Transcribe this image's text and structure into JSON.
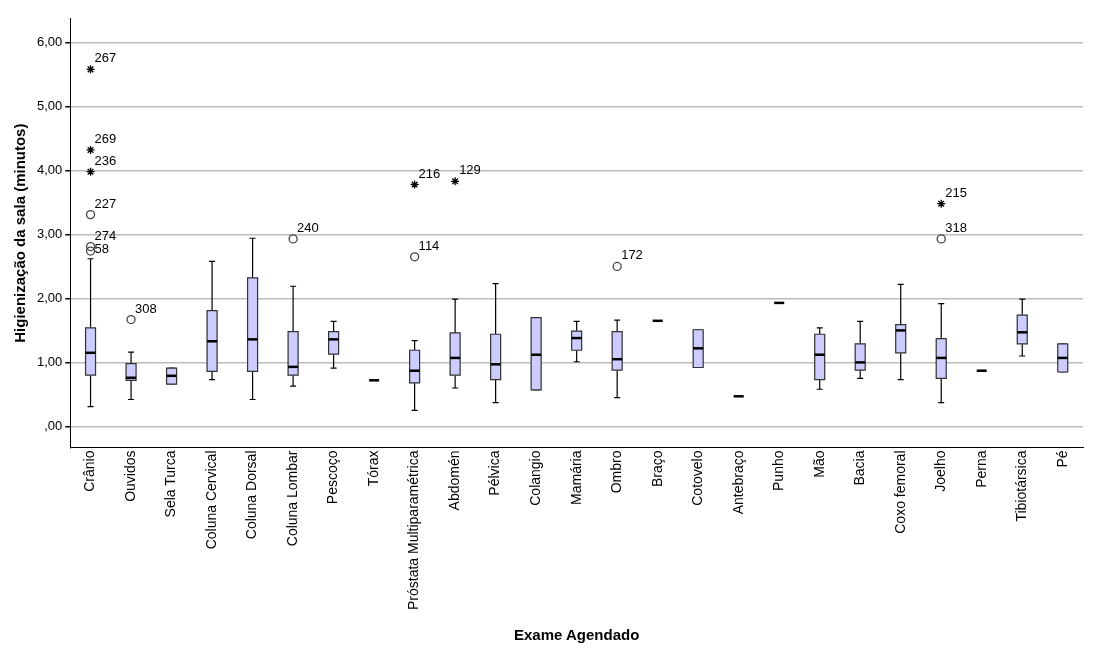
{
  "chart_data": {
    "type": "box",
    "xlabel": "Exame Agendado",
    "ylabel": "Higienização da sala (minutos)",
    "categories": [
      "Crânio",
      "Ouvidos",
      "Sela Turca",
      "Coluna Cervical",
      "Coluna Dorsal",
      "Coluna Lombar",
      "Pescoço",
      "Tórax",
      "Próstata Multiparamétrica",
      "Abdomén",
      "Pélvica",
      "Colangio",
      "Mamária",
      "Ombro",
      "Braço",
      "Cotovelo",
      "Antebraço",
      "Punho",
      "Mão",
      "Bacia",
      "Coxo femoral",
      "Joelho",
      "Perna",
      "Tibiotársica",
      "Pé"
    ],
    "series": [
      {
        "color": "#ccccff",
        "boxes": [
          {
            "low": 0.31,
            "q1": 0.8,
            "median": 1.15,
            "q3": 1.54,
            "high": 2.62
          },
          {
            "low": 0.42,
            "q1": 0.72,
            "median": 0.76,
            "q3": 0.98,
            "high": 1.16
          },
          {
            "low": 0.66,
            "q1": 0.66,
            "median": 0.79,
            "q3": 0.91,
            "high": 0.91
          },
          {
            "low": 0.73,
            "q1": 0.86,
            "median": 1.33,
            "q3": 1.81,
            "high": 2.58
          },
          {
            "low": 0.42,
            "q1": 0.86,
            "median": 1.36,
            "q3": 2.32,
            "high": 2.94
          },
          {
            "low": 0.63,
            "q1": 0.8,
            "median": 0.93,
            "q3": 1.48,
            "high": 2.19
          },
          {
            "low": 0.91,
            "q1": 1.13,
            "median": 1.36,
            "q3": 1.48,
            "high": 1.64
          },
          {
            "low": 0.72,
            "q1": 0.72,
            "median": 0.72,
            "q3": 0.72,
            "high": 0.72
          },
          {
            "low": 0.25,
            "q1": 0.68,
            "median": 0.87,
            "q3": 1.19,
            "high": 1.34
          },
          {
            "low": 0.6,
            "q1": 0.8,
            "median": 1.07,
            "q3": 1.46,
            "high": 1.99
          },
          {
            "low": 0.37,
            "q1": 0.73,
            "median": 0.97,
            "q3": 1.44,
            "high": 2.23
          },
          {
            "low": 0.57,
            "q1": 0.57,
            "median": 1.12,
            "q3": 1.7,
            "high": 1.7
          },
          {
            "low": 1.01,
            "q1": 1.19,
            "median": 1.38,
            "q3": 1.49,
            "high": 1.64
          },
          {
            "low": 0.45,
            "q1": 0.88,
            "median": 1.05,
            "q3": 1.48,
            "high": 1.66
          },
          {
            "low": 1.65,
            "q1": 1.65,
            "median": 1.65,
            "q3": 1.65,
            "high": 1.65
          },
          {
            "low": 0.92,
            "q1": 0.92,
            "median": 1.22,
            "q3": 1.51,
            "high": 1.51
          },
          {
            "low": 0.47,
            "q1": 0.47,
            "median": 0.47,
            "q3": 0.47,
            "high": 0.47
          },
          {
            "low": 1.93,
            "q1": 1.93,
            "median": 1.93,
            "q3": 1.93,
            "high": 1.93
          },
          {
            "low": 0.58,
            "q1": 0.73,
            "median": 1.12,
            "q3": 1.44,
            "high": 1.54
          },
          {
            "low": 0.75,
            "q1": 0.88,
            "median": 1.0,
            "q3": 1.29,
            "high": 1.64
          },
          {
            "low": 0.73,
            "q1": 1.15,
            "median": 1.5,
            "q3": 1.59,
            "high": 2.22
          },
          {
            "low": 0.37,
            "q1": 0.75,
            "median": 1.07,
            "q3": 1.37,
            "high": 1.92
          },
          {
            "low": 0.87,
            "q1": 0.87,
            "median": 0.87,
            "q3": 0.87,
            "high": 0.87
          },
          {
            "low": 1.1,
            "q1": 1.29,
            "median": 1.47,
            "q3": 1.74,
            "high": 1.99
          },
          {
            "low": 0.85,
            "q1": 0.85,
            "median": 1.07,
            "q3": 1.29,
            "high": 1.29
          }
        ]
      },
      {
        "type": "scatter",
        "marker": "cross",
        "color": "#000000",
        "x": [
          "Crânio",
          "Crânio",
          "Crânio",
          "Próstata Multiparamétrica",
          "Abdomén",
          "Joelho"
        ],
        "values": [
          5.58,
          4.32,
          3.98,
          3.78,
          3.83,
          3.48
        ]
      },
      {
        "type": "scatter",
        "marker": "circle",
        "color": "#444444",
        "x": [
          "Crânio",
          "Crânio",
          "Crânio",
          "Ouvidos",
          "Coluna Lombar",
          "Próstata Multiparamétrica",
          "Ombro",
          "Joelho"
        ],
        "values": [
          3.31,
          2.81,
          2.74,
          1.67,
          2.93,
          2.65,
          2.5,
          2.93
        ]
      }
    ],
    "annotations": [
      {
        "text": "267",
        "x": "Crânio",
        "y": 5.58
      },
      {
        "text": "269",
        "x": "Crânio",
        "y": 4.32
      },
      {
        "text": "236",
        "x": "Crânio",
        "y": 3.98
      },
      {
        "text": "227",
        "x": "Crânio",
        "y": 3.31
      },
      {
        "text": "274",
        "x": "Crânio",
        "y": 2.81
      },
      {
        "text": "58",
        "x": "Crânio",
        "y": 2.74
      },
      {
        "text": "308",
        "x": "Ouvidos",
        "y": 1.67
      },
      {
        "text": "240",
        "x": "Coluna Lombar",
        "y": 2.93
      },
      {
        "text": "216",
        "x": "Próstata Multiparamétrica",
        "y": 3.78
      },
      {
        "text": "114",
        "x": "Próstata Multiparamétrica",
        "y": 2.65
      },
      {
        "text": "129",
        "x": "Abdomén",
        "y": 3.83
      },
      {
        "text": "172",
        "x": "Ombro",
        "y": 2.5
      },
      {
        "text": "215",
        "x": "Joelho",
        "y": 3.48
      },
      {
        "text": "318",
        "x": "Joelho",
        "y": 2.93
      }
    ],
    "ylim": [
      -0.33,
      6.37
    ],
    "yticks": [
      {
        "value": 0,
        "label": ",00"
      },
      {
        "value": 1,
        "label": "1,00"
      },
      {
        "value": 2,
        "label": "2,00"
      },
      {
        "value": 3,
        "label": "3,00"
      },
      {
        "value": 4,
        "label": "4,00"
      },
      {
        "value": 5,
        "label": "5,00"
      },
      {
        "value": 6,
        "label": "6,00"
      }
    ],
    "grid": "y",
    "legend": false
  }
}
